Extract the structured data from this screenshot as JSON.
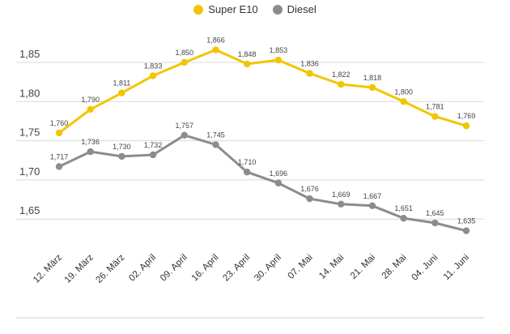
{
  "chart_data": {
    "type": "line",
    "title": "",
    "xlabel": "",
    "ylabel": "",
    "categories": [
      "12. März",
      "19. März",
      "26. März",
      "02. April",
      "09. April",
      "16. April",
      "23. April",
      "30. April",
      "07. Mai",
      "14. Mai",
      "21. Mai",
      "28. Mai",
      "04. Juni",
      "11. Juni"
    ],
    "series": [
      {
        "name": "Super E10",
        "color": "#f2c500",
        "values": [
          1.76,
          1.79,
          1.811,
          1.833,
          1.85,
          1.866,
          1.848,
          1.853,
          1.836,
          1.822,
          1.818,
          1.8,
          1.781,
          1.769
        ],
        "labels": [
          "1,760",
          "1,790",
          "1,811",
          "1,833",
          "1,850",
          "1,866",
          "1,848",
          "1,853",
          "1,836",
          "1,822",
          "1,818",
          "1,800",
          "1,781",
          "1,769"
        ]
      },
      {
        "name": "Diesel",
        "color": "#8c8c8c",
        "values": [
          1.717,
          1.736,
          1.73,
          1.732,
          1.757,
          1.745,
          1.71,
          1.696,
          1.676,
          1.669,
          1.667,
          1.651,
          1.645,
          1.635
        ],
        "labels": [
          "1,717",
          "1,736",
          "1,730",
          "1,732",
          "1,757",
          "1,745",
          "1,710",
          "1,696",
          "1,676",
          "1,669",
          "1,667",
          "1,651",
          "1,645",
          "1,635"
        ]
      }
    ],
    "yticks": [
      1.65,
      1.7,
      1.75,
      1.8,
      1.85
    ],
    "ytick_labels": [
      "1,65",
      "1,70",
      "1,75",
      "1,80",
      "1,85"
    ],
    "ylim": [
      1.615,
      1.88
    ],
    "grid": true,
    "legend": "top-center"
  }
}
